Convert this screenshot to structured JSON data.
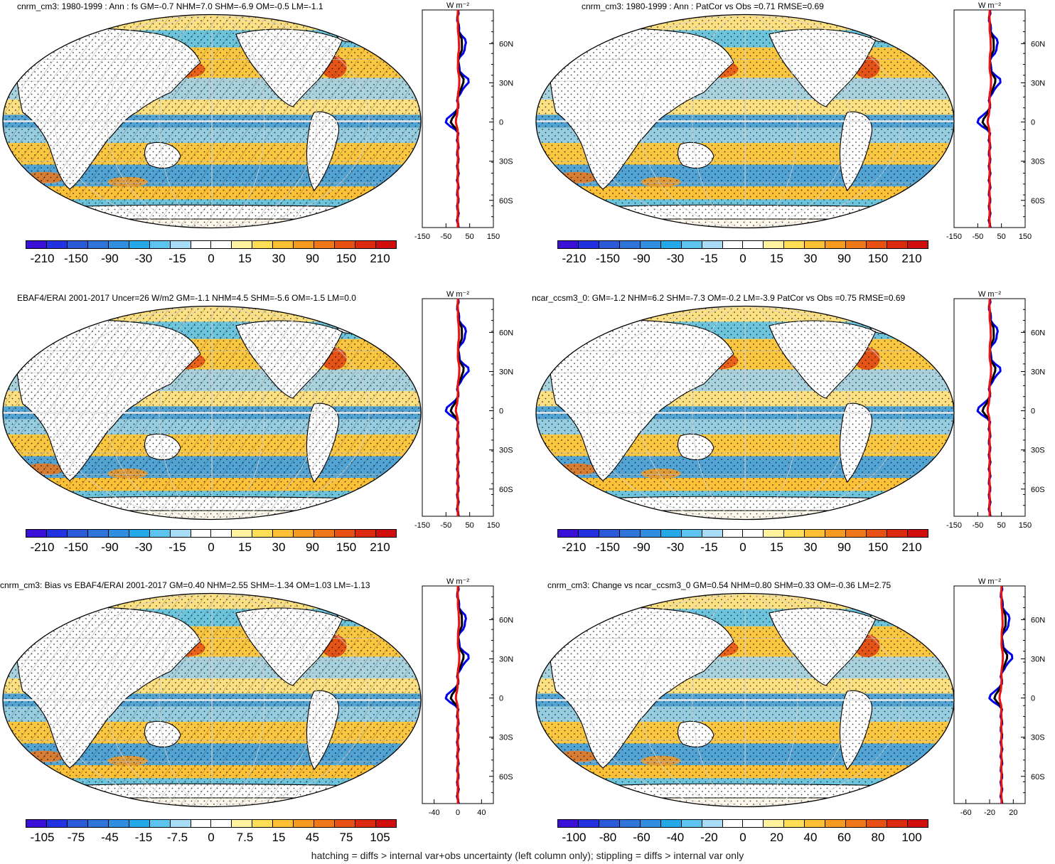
{
  "footnote": "hatching = diffs > internal var+obs uncertainty (left column only); stippling = diffs > internal var only",
  "zonal_unit": "W m⁻²",
  "lat_labels": [
    "60N",
    "30N",
    "0",
    "30S",
    "60S"
  ],
  "colors": {
    "diverging": [
      "#3a10d8",
      "#2232e0",
      "#2a5ad8",
      "#2f74d8",
      "#2f8ee0",
      "#25a8e8",
      "#5cc4ee",
      "#a8dcf4",
      "#ffffff",
      "#ffffff",
      "#fff3a0",
      "#ffdd55",
      "#fcc035",
      "#f79a20",
      "#f07818",
      "#e85014",
      "#dc2a10",
      "#d00e0e"
    ],
    "ocean_neg": "#3ea0e4",
    "ocean_pos": "#fbc640",
    "land": "#ffffff"
  },
  "panels": [
    {
      "id": "p1",
      "title": "cnrm_cm3: 1980-1999 : Ann : fs GM=-0.7 NHM=7.0 SHM=-6.9 OM=-0.5 LM=-1.1",
      "colorbar_labels": [
        "-210",
        "-150",
        "-90",
        "-30",
        "-15",
        "0",
        "15",
        "30",
        "90",
        "150",
        "210"
      ],
      "zonal_ticks": [
        "-150",
        "-50",
        "50",
        "150"
      ],
      "zonal_range": [
        -150,
        150
      ]
    },
    {
      "id": "p2",
      "title": "cnrm_cm3: 1980-1999 : Ann : PatCor vs Obs =0.71 RMSE=0.69",
      "colorbar_labels": [
        "-210",
        "-150",
        "-90",
        "-30",
        "-15",
        "0",
        "15",
        "30",
        "90",
        "150",
        "210"
      ],
      "zonal_ticks": [
        "-150",
        "-50",
        "50",
        "150"
      ],
      "zonal_range": [
        -150,
        150
      ]
    },
    {
      "id": "p3",
      "title": "EBAF4/ERAI 2001-2017 Uncer=26 W/m2 GM=-1.1 NHM=4.5 SHM=-5.6 OM=-1.5 LM=0.0",
      "colorbar_labels": [
        "-210",
        "-150",
        "-90",
        "-30",
        "-15",
        "0",
        "15",
        "30",
        "90",
        "150",
        "210"
      ],
      "zonal_ticks": [
        "-150",
        "-50",
        "50",
        "150"
      ],
      "zonal_range": [
        -150,
        150
      ]
    },
    {
      "id": "p4",
      "title": "ncar_ccsm3_0: GM=-1.2 NHM=6.2 SHM=-7.3 OM=-0.2 LM=-3.9 PatCor vs Obs =0.75 RMSE=0.69",
      "colorbar_labels": [
        "-210",
        "-150",
        "-90",
        "-30",
        "-15",
        "0",
        "15",
        "30",
        "90",
        "150",
        "210"
      ],
      "zonal_ticks": [
        "-150",
        "-50",
        "50",
        "150"
      ],
      "zonal_range": [
        -150,
        150
      ]
    },
    {
      "id": "p5",
      "title": "cnrm_cm3: Bias vs EBAF4/ERAI 2001-2017 GM=0.40 NHM=2.55 SHM=-1.34 OM=1.03 LM=-1.13",
      "colorbar_labels": [
        "-105",
        "-75",
        "-45",
        "-15",
        "-7.5",
        "0",
        "7.5",
        "15",
        "45",
        "75",
        "105"
      ],
      "zonal_ticks": [
        "-40",
        "0",
        "40"
      ],
      "zonal_range": [
        -60,
        60
      ]
    },
    {
      "id": "p6",
      "title": "cnrm_cm3: Change vs ncar_ccsm3_0 GM=0.54 NHM=0.80 SHM=0.33 OM=-0.36 LM=2.75",
      "colorbar_labels": [
        "-100",
        "-80",
        "-60",
        "-40",
        "-20",
        "0",
        "20",
        "40",
        "60",
        "80",
        "100"
      ],
      "zonal_ticks": [
        "-60",
        "-20",
        "20"
      ],
      "zonal_range": [
        -80,
        40
      ]
    }
  ]
}
